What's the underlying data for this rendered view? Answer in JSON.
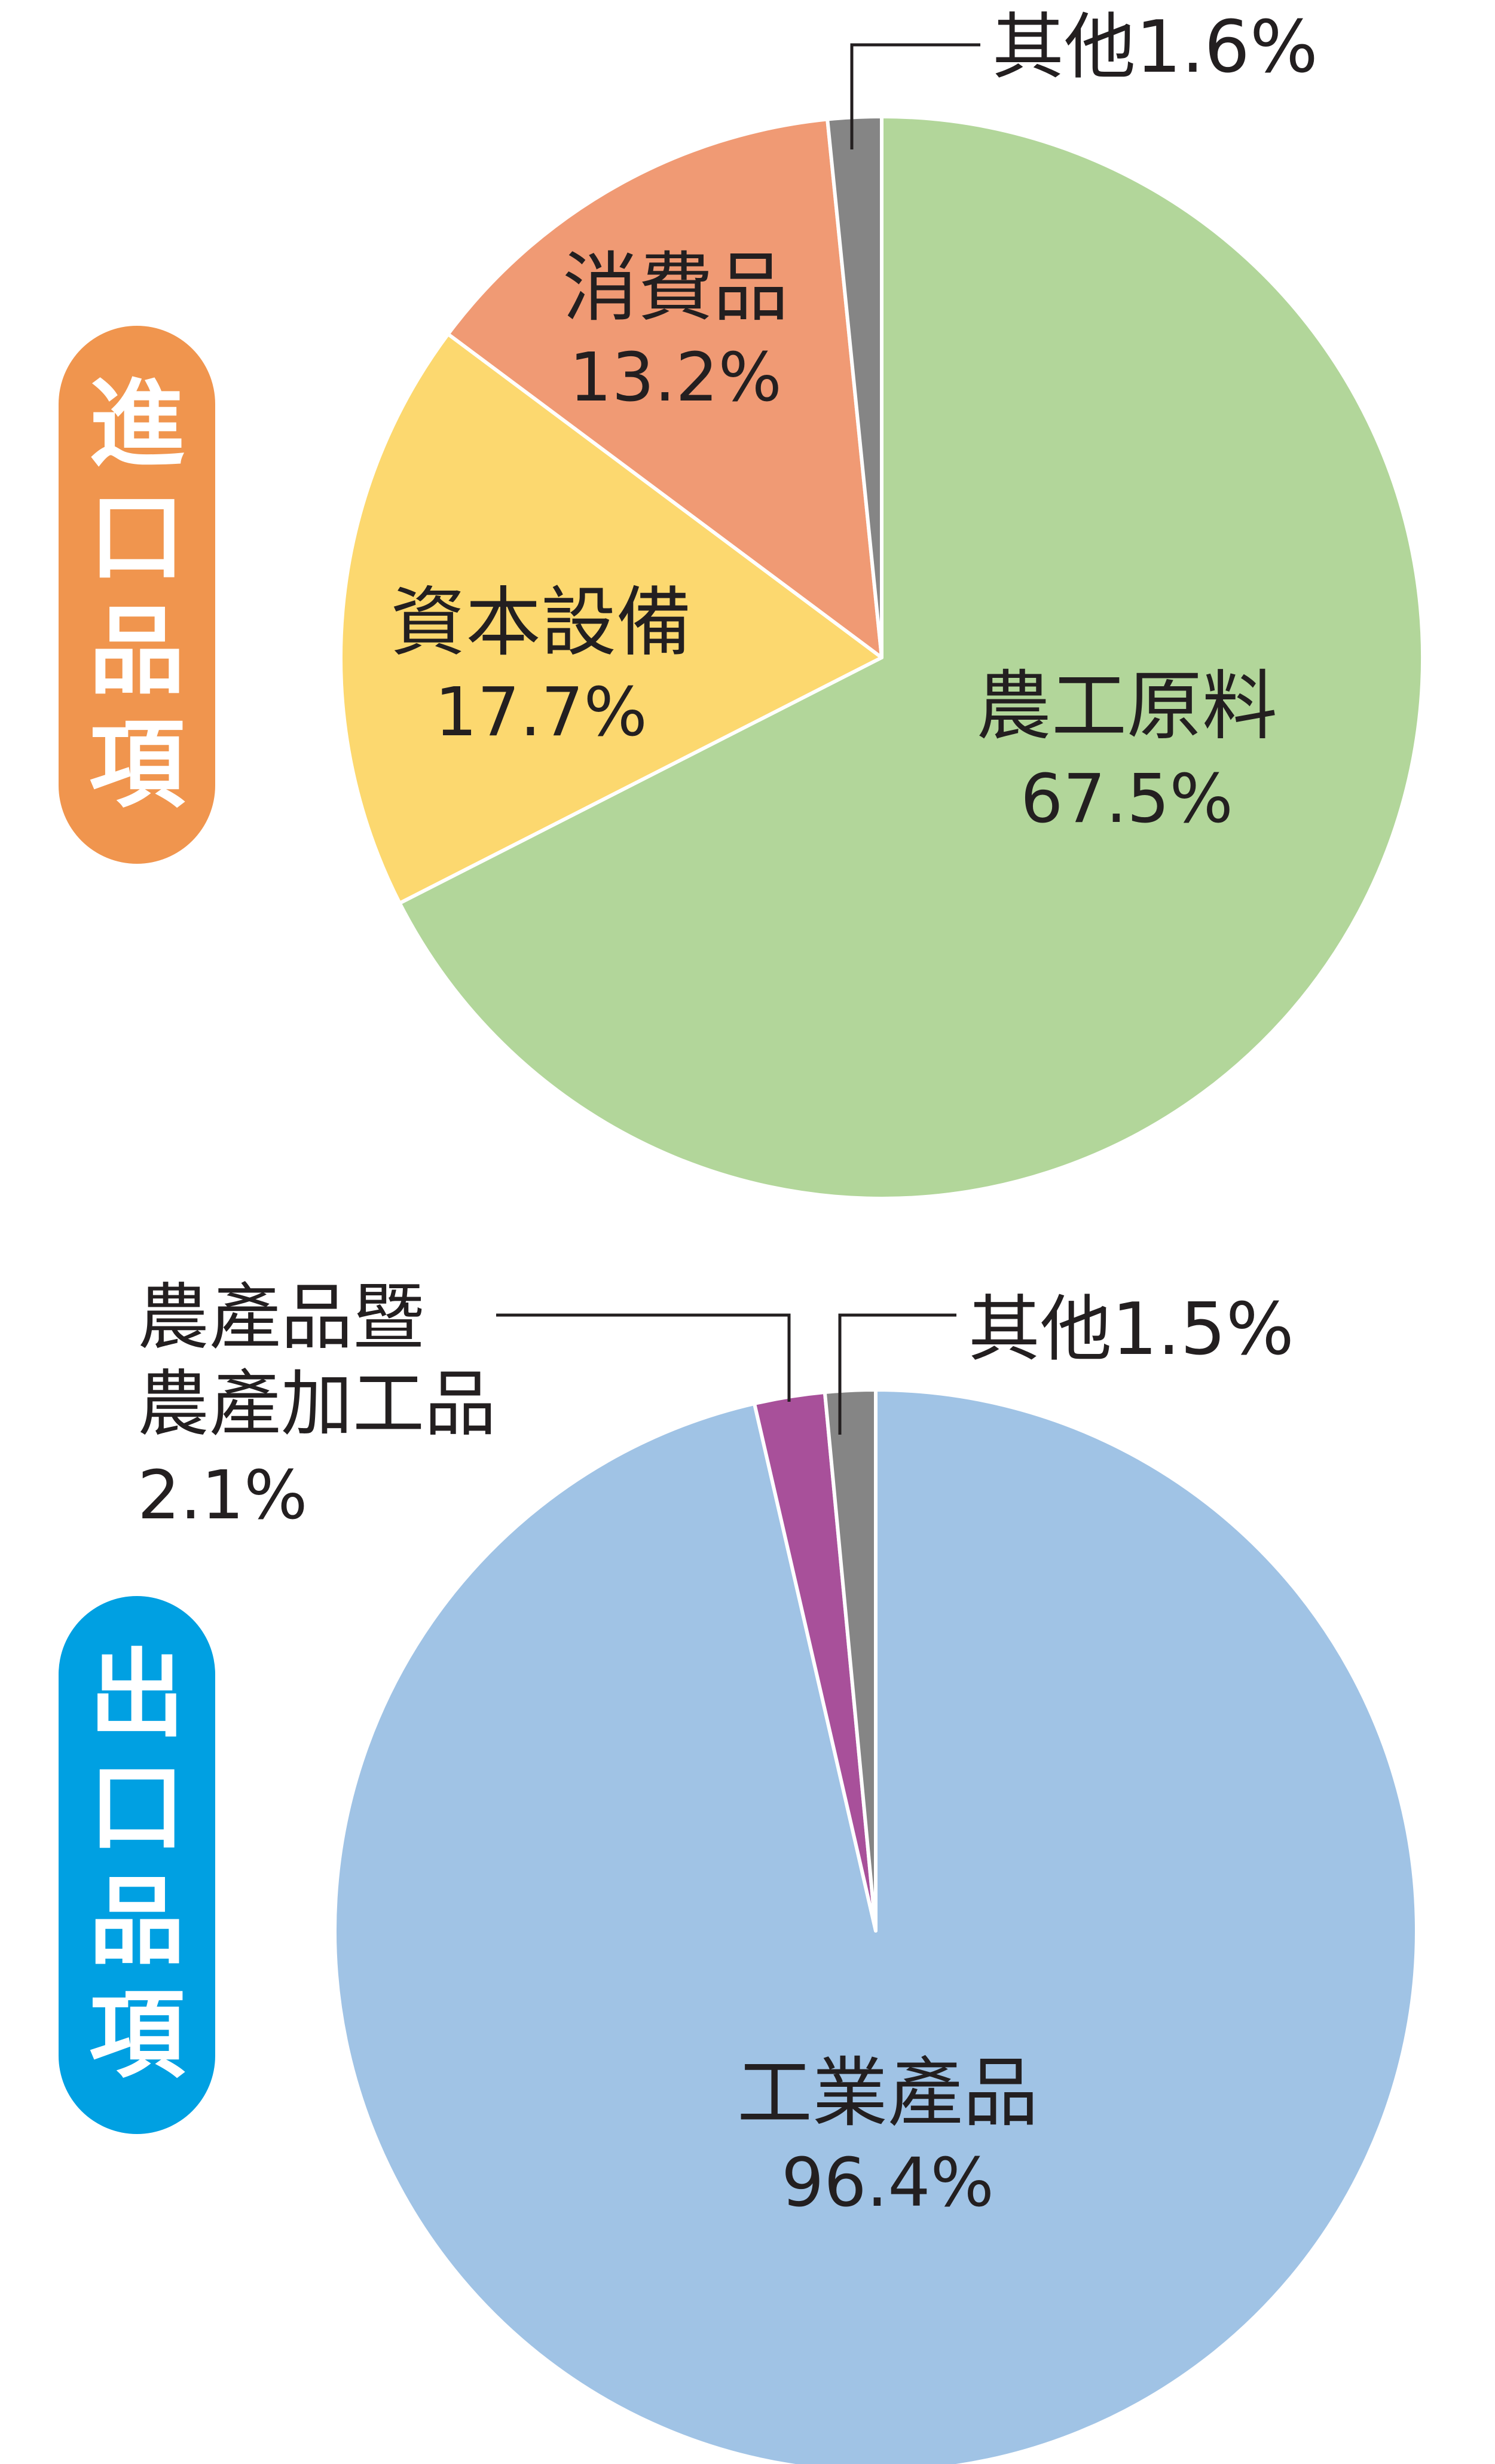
{
  "chart_data": [
    {
      "type": "pie",
      "title": "進口品項",
      "title_color": "#F0954E",
      "slices": [
        {
          "name": "農工原料",
          "label": "農工原料",
          "value": 67.5,
          "value_label": "67.5%",
          "color": "#B2D69A"
        },
        {
          "name": "資本設備",
          "label": "資本設備",
          "value": 17.7,
          "value_label": "17.7%",
          "color": "#FCD86F"
        },
        {
          "name": "消費品",
          "label": "消費品",
          "value": 13.2,
          "value_label": "13.2%",
          "color": "#F09A74"
        },
        {
          "name": "其他",
          "label": "其他",
          "value": 1.6,
          "value_label": "1.6%",
          "color": "#858585"
        }
      ]
    },
    {
      "type": "pie",
      "title": "出口品項",
      "title_color": "#00A0E2",
      "slices": [
        {
          "name": "工業產品",
          "label": "工業產品",
          "value": 96.4,
          "value_label": "96.4%",
          "color": "#A0C3E5"
        },
        {
          "name": "農產品暨農產加工品",
          "label_lines": [
            "農產品暨",
            "農產加工品"
          ],
          "value": 2.1,
          "value_label": "2.1%",
          "color": "#A8509A"
        },
        {
          "name": "其他",
          "label": "其他",
          "value": 1.5,
          "value_label": "1.5%",
          "color": "#858585"
        }
      ]
    }
  ]
}
